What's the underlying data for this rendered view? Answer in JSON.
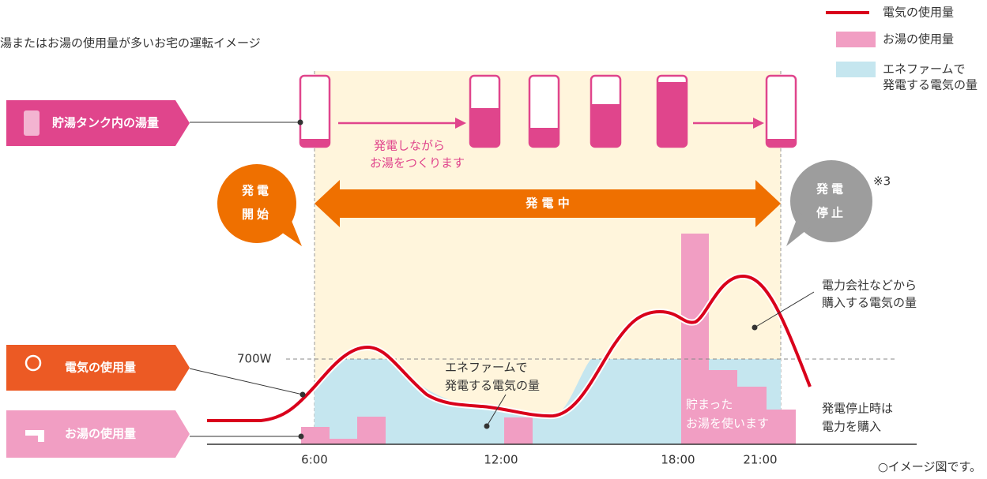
{
  "title": "湯またはお湯の使用量が多いお宅の運転イメージ",
  "legend": [
    {
      "label": [
        "電気の使用量"
      ]
    },
    {
      "label": [
        "お湯の使用量"
      ]
    },
    {
      "label": [
        "エネファームで",
        "発電する電気の量"
      ]
    }
  ],
  "side_labels": [
    "貯湯タンク内の湯量",
    "電気の使用量",
    "お湯の使用量"
  ],
  "tank_note": [
    "発電しながら",
    "お湯をつくります"
  ],
  "start_bubble": [
    "発電",
    "開始"
  ],
  "running_arrow": "発 電 中",
  "stop_bubble": [
    "発電",
    "停止"
  ],
  "stop_note": "※3",
  "annotations": {
    "purchased": [
      "電力会社などから",
      "購入する電気の量"
    ],
    "generated": [
      "エネファームで",
      "発電する電気の量"
    ],
    "stored": [
      "貯まった",
      "お湯を使います"
    ],
    "stopped": [
      "発電停止時は",
      "電力を購入"
    ]
  },
  "threshold": "700W",
  "times": [
    "6:00",
    "12:00",
    "18:00",
    "21:00"
  ],
  "footnote": "○イメージ図です。"
}
